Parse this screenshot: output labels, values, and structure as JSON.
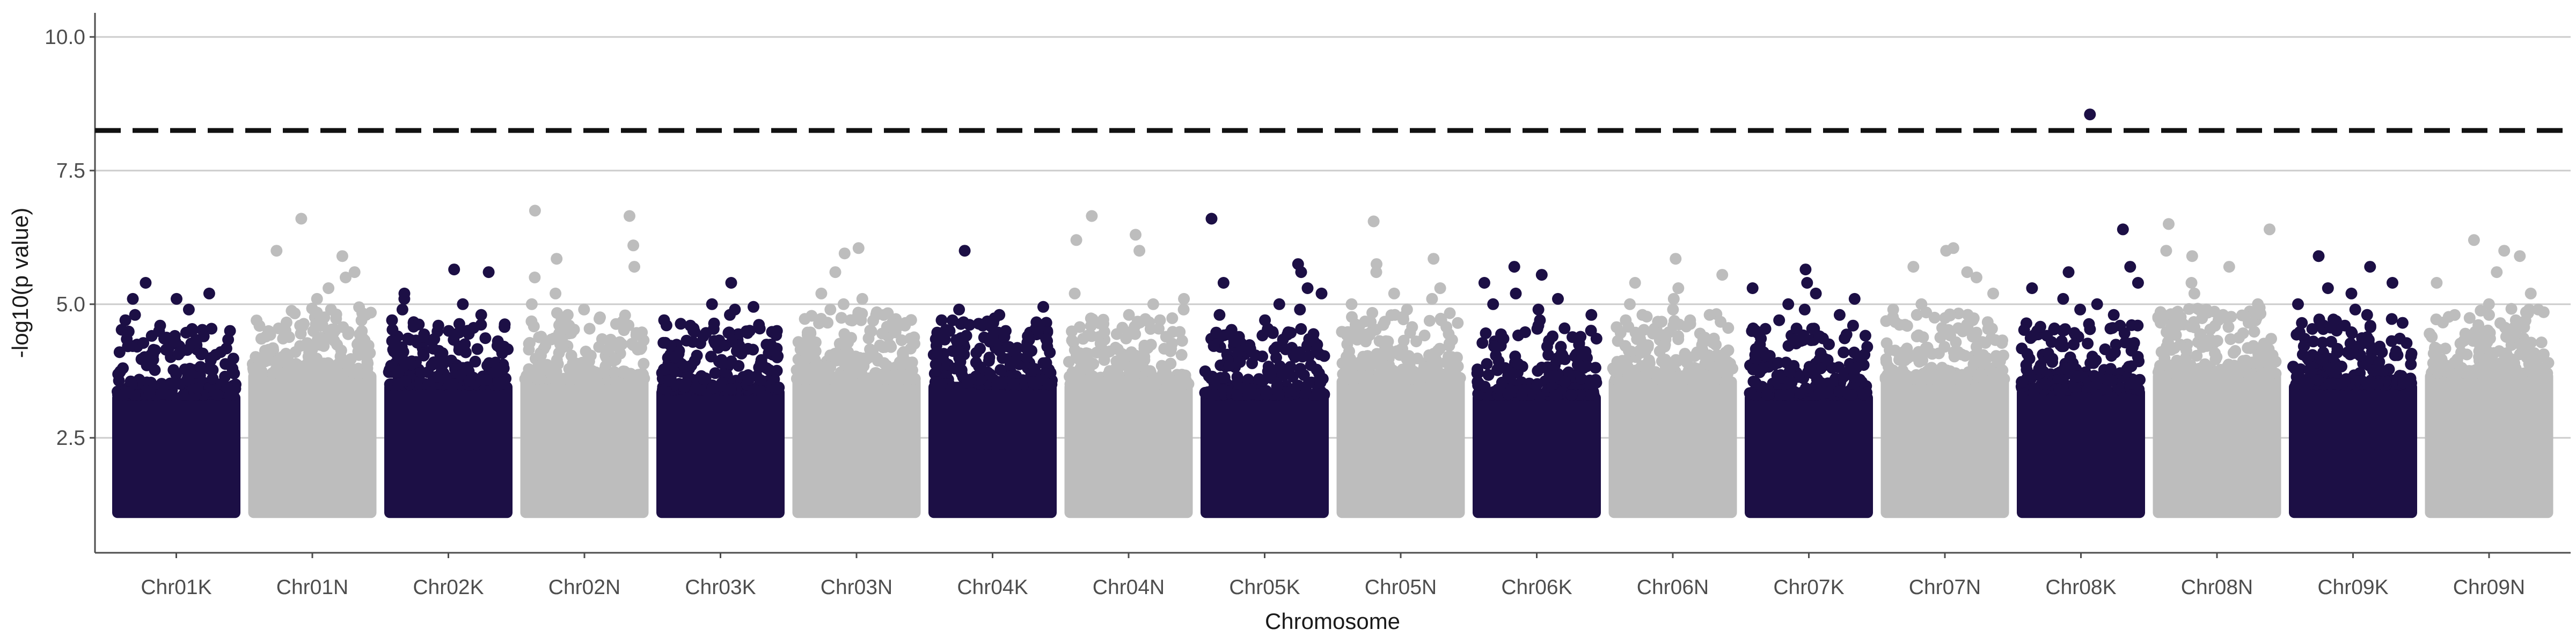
{
  "chart_data": {
    "type": "scatter",
    "title": "",
    "xlabel": "Chromosome",
    "ylabel": "-log10(p value)",
    "ylim": [
      0.35,
      10.45
    ],
    "y_ticks": [
      "2.5",
      "5.0",
      "7.5",
      "10.0"
    ],
    "grid": "horizontal major lines",
    "threshold": 8.25,
    "colors": {
      "K": "#1c0f45",
      "N": "#bdbdbd",
      "threshold": "#111111"
    },
    "categories": [
      "Chr01K",
      "Chr01N",
      "Chr02K",
      "Chr02N",
      "Chr03K",
      "Chr03N",
      "Chr04K",
      "Chr04N",
      "Chr05K",
      "Chr05N",
      "Chr06K",
      "Chr06N",
      "Chr07K",
      "Chr07N",
      "Chr08K",
      "Chr08N",
      "Chr09K",
      "Chr09N"
    ],
    "chromosomes": [
      {
        "name": "Chr01K",
        "group": "K",
        "base_max": 3.6,
        "top": [
          5.1,
          5.2,
          5.4,
          5.1,
          4.9,
          4.8,
          4.6,
          4.7,
          4.5,
          4.3
        ]
      },
      {
        "name": "Chr01N",
        "group": "N",
        "base_max": 4.0,
        "top": [
          6.6,
          5.9,
          6.0,
          5.3,
          5.5,
          5.6,
          5.1,
          4.9,
          4.8,
          4.6
        ]
      },
      {
        "name": "Chr02K",
        "group": "K",
        "base_max": 3.8,
        "top": [
          5.65,
          5.6,
          5.2,
          5.1,
          5.0,
          4.9,
          4.8,
          4.7,
          4.6,
          4.5
        ]
      },
      {
        "name": "Chr02N",
        "group": "N",
        "base_max": 3.9,
        "top": [
          6.75,
          6.65,
          6.1,
          5.85,
          5.7,
          5.5,
          5.2,
          5.0,
          4.9,
          4.8
        ]
      },
      {
        "name": "Chr03K",
        "group": "K",
        "base_max": 3.7,
        "top": [
          5.4,
          5.0,
          4.95,
          4.9,
          4.8,
          4.7,
          4.6,
          4.5,
          4.4,
          4.3
        ]
      },
      {
        "name": "Chr03N",
        "group": "N",
        "base_max": 3.9,
        "top": [
          6.05,
          5.95,
          5.6,
          5.2,
          5.1,
          5.0,
          4.9,
          4.8,
          4.7,
          4.6
        ]
      },
      {
        "name": "Chr04K",
        "group": "K",
        "base_max": 3.8,
        "top": [
          6.0,
          4.95,
          4.9,
          4.8,
          4.7,
          4.6,
          4.5,
          4.4,
          4.3,
          4.2
        ]
      },
      {
        "name": "Chr04N",
        "group": "N",
        "base_max": 3.8,
        "top": [
          6.65,
          6.3,
          6.2,
          6.0,
          5.2,
          5.1,
          5.0,
          4.9,
          4.8,
          4.7
        ]
      },
      {
        "name": "Chr05K",
        "group": "K",
        "base_max": 3.6,
        "top": [
          6.6,
          5.75,
          5.6,
          5.4,
          5.3,
          5.2,
          5.0,
          4.9,
          4.8,
          4.7
        ]
      },
      {
        "name": "Chr05N",
        "group": "N",
        "base_max": 3.9,
        "top": [
          6.55,
          5.85,
          5.75,
          5.6,
          5.3,
          5.2,
          5.1,
          5.0,
          4.9,
          4.8
        ]
      },
      {
        "name": "Chr06K",
        "group": "K",
        "base_max": 3.6,
        "top": [
          5.7,
          5.55,
          5.4,
          5.2,
          5.1,
          5.0,
          4.9,
          4.8,
          4.7,
          4.6
        ]
      },
      {
        "name": "Chr06N",
        "group": "N",
        "base_max": 3.9,
        "top": [
          5.85,
          5.55,
          5.4,
          5.3,
          5.1,
          5.0,
          4.9,
          4.8,
          4.7,
          4.6
        ]
      },
      {
        "name": "Chr07K",
        "group": "K",
        "base_max": 3.6,
        "top": [
          5.65,
          5.4,
          5.3,
          5.2,
          5.1,
          5.0,
          4.9,
          4.8,
          4.7,
          4.6
        ]
      },
      {
        "name": "Chr07N",
        "group": "N",
        "base_max": 3.9,
        "top": [
          6.05,
          6.0,
          5.7,
          5.6,
          5.5,
          5.2,
          5.0,
          4.9,
          4.8,
          4.7
        ]
      },
      {
        "name": "Chr08K",
        "group": "K",
        "base_max": 3.7,
        "top": [
          8.55,
          6.4,
          5.7,
          5.6,
          5.4,
          5.3,
          5.1,
          5.0,
          4.9,
          4.8
        ]
      },
      {
        "name": "Chr08N",
        "group": "N",
        "base_max": 4.0,
        "top": [
          6.5,
          6.4,
          6.0,
          5.9,
          5.7,
          5.4,
          5.2,
          5.0,
          4.9,
          4.8
        ]
      },
      {
        "name": "Chr09K",
        "group": "K",
        "base_max": 3.8,
        "top": [
          5.9,
          5.7,
          5.4,
          5.3,
          5.2,
          5.0,
          4.9,
          4.8,
          4.7,
          4.6
        ]
      },
      {
        "name": "Chr09N",
        "group": "N",
        "base_max": 4.0,
        "top": [
          6.2,
          6.0,
          5.9,
          5.6,
          5.4,
          5.2,
          5.0,
          4.9,
          4.8,
          4.7
        ]
      }
    ]
  }
}
